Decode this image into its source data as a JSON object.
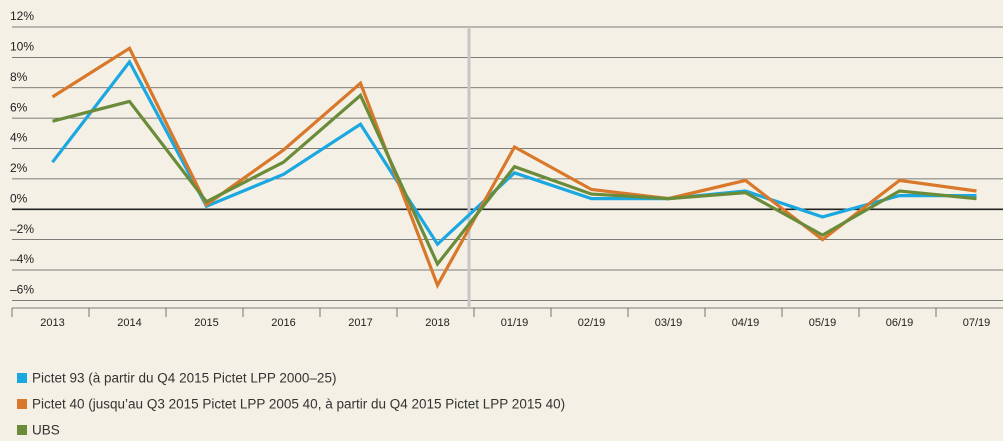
{
  "chart_data": {
    "type": "line",
    "categories": [
      "2013",
      "2014",
      "2015",
      "2016",
      "2017",
      "2018",
      "01/19",
      "02/19",
      "03/19",
      "04/19",
      "05/19",
      "06/19",
      "07/19"
    ],
    "series": [
      {
        "name": "Pictet 93 (à partir du Q4 2015 Pictet LPP 2000–25)",
        "color": "#1ba8e0",
        "values": [
          3.1,
          9.7,
          0.2,
          2.3,
          5.6,
          -2.3,
          2.4,
          0.7,
          0.7,
          1.2,
          -0.5,
          0.9,
          0.9
        ]
      },
      {
        "name": "Pictet 40 (jusqu’au Q3 2015 Pictet LPP 2005 40, à partir du Q4 2015 Pictet LPP 2015 40)",
        "color": "#d9782a",
        "values": [
          7.4,
          10.6,
          0.3,
          3.9,
          8.3,
          -5.0,
          4.1,
          1.3,
          0.7,
          1.9,
          -2.0,
          1.9,
          1.2
        ]
      },
      {
        "name": "UBS",
        "color": "#6a8c3a",
        "values": [
          5.8,
          7.1,
          0.5,
          3.1,
          7.5,
          -3.6,
          2.8,
          1.0,
          0.7,
          1.1,
          -1.7,
          1.2,
          0.7
        ]
      }
    ],
    "ylim": [
      -6.5,
      12
    ],
    "yticks": [
      {
        "value": 12,
        "label": "12%"
      },
      {
        "value": 10,
        "label": "10%"
      },
      {
        "value": 8,
        "label": "8%"
      },
      {
        "value": 6,
        "label": "6%"
      },
      {
        "value": 4,
        "label": "4%"
      },
      {
        "value": 2,
        "label": "2%"
      },
      {
        "value": 0,
        "label": "0%"
      },
      {
        "value": -2,
        "label": "–2%"
      },
      {
        "value": -4,
        "label": "–4%"
      },
      {
        "value": -6,
        "label": "–6%"
      }
    ],
    "grid": true
  }
}
